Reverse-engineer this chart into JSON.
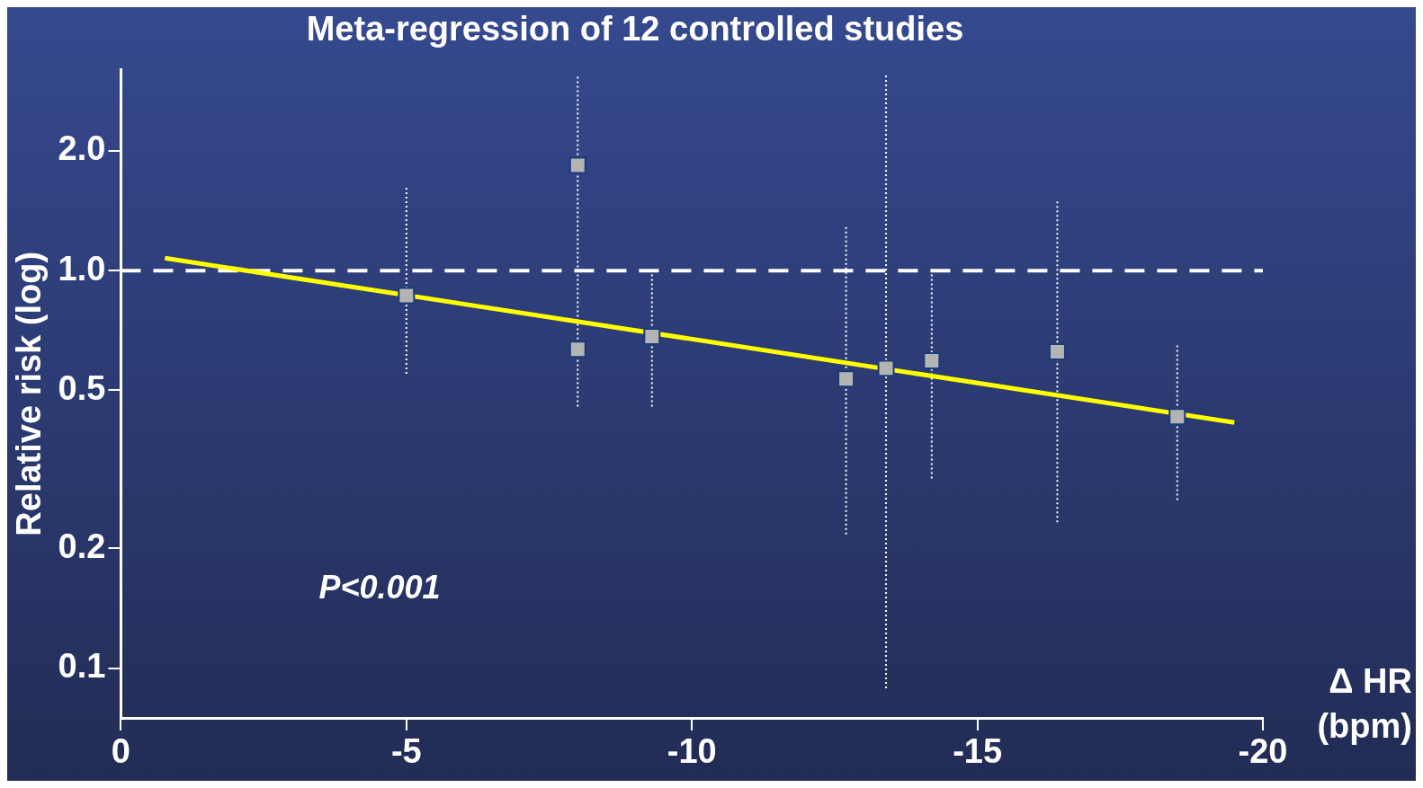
{
  "chart_data": {
    "type": "scatter",
    "title": "Meta-regression of 12 controlled studies",
    "xlabel": "Δ HR (bpm)",
    "ylabel": "Relative risk (log)",
    "xlim": [
      0,
      -20
    ],
    "xticks": [
      0,
      -5,
      -10,
      -15,
      -20
    ],
    "ylim": [
      0.075,
      3.2
    ],
    "yticks": [
      {
        "value": 0.1,
        "label": "0.1"
      },
      {
        "value": 0.2,
        "label": "0.2"
      },
      {
        "value": 0.5,
        "label": "0.5"
      },
      {
        "value": 1,
        "label": "1.0"
      },
      {
        "value": 2,
        "label": "2.0"
      }
    ],
    "log": "y",
    "grid": false,
    "legend": false,
    "marker": "square",
    "series": [
      {
        "type": "scatter",
        "color": "#b4b4b4",
        "x": [
          -5.0,
          -8.0,
          -8.0,
          -9.3,
          -12.7,
          -13.4,
          -14.2,
          -16.4,
          -18.5
        ],
        "values": [
          0.865,
          1.84,
          0.634,
          0.683,
          0.534,
          0.568,
          0.593,
          0.625,
          0.429
        ],
        "errors": [
          [
            0.55,
            1.63
          ],
          [
            0.455,
            3.1
          ],
          null,
          [
            0.455,
            0.99
          ],
          [
            0.217,
            1.29
          ],
          [
            0.089,
            3.1
          ],
          [
            0.3,
            1.0
          ],
          [
            0.233,
            1.5
          ],
          [
            0.265,
            0.653
          ]
        ]
      },
      {
        "type": "line",
        "color": "#ffff00",
        "x": [
          -0.77,
          -19.5
        ],
        "values": [
          1.075,
          0.415
        ],
        "marker": "none",
        "line_style": "solid"
      }
    ],
    "ref_lines": [
      {
        "axis": "y",
        "value": 1,
        "color": "#ffffff",
        "line_style": "dashed"
      }
    ],
    "annotations": [
      "P<0.001"
    ]
  }
}
